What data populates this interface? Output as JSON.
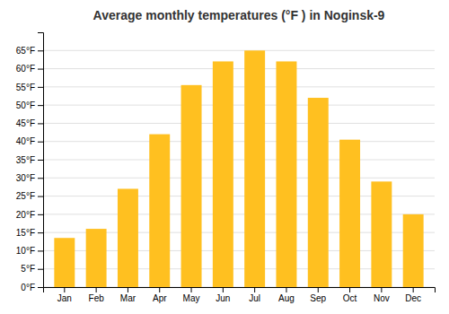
{
  "chart_data": {
    "type": "bar",
    "title": "Average monthly temperatures (°F ) in Noginsk-9",
    "categories": [
      "Jan",
      "Feb",
      "Mar",
      "Apr",
      "May",
      "Jun",
      "Jul",
      "Aug",
      "Sep",
      "Oct",
      "Nov",
      "Dec"
    ],
    "values": [
      13.5,
      16,
      27,
      42,
      55.5,
      62,
      65,
      62,
      52,
      40.5,
      29,
      20
    ],
    "color": "#FFC020",
    "ylim": [
      0,
      70
    ],
    "yticks": [
      {
        "value": 0,
        "label": "0°F"
      },
      {
        "value": 5,
        "label": "5°F"
      },
      {
        "value": 10,
        "label": "10°F"
      },
      {
        "value": 15,
        "label": "15°F"
      },
      {
        "value": 20,
        "label": "20°F"
      },
      {
        "value": 25,
        "label": "25°F"
      },
      {
        "value": 30,
        "label": "30°F"
      },
      {
        "value": 35,
        "label": "35°F"
      },
      {
        "value": 40,
        "label": "40°F"
      },
      {
        "value": 45,
        "label": "45°F"
      },
      {
        "value": 50,
        "label": "50°F"
      },
      {
        "value": 55,
        "label": "55°F"
      },
      {
        "value": 60,
        "label": "60°F"
      },
      {
        "value": 65,
        "label": "65°F"
      }
    ],
    "grid": true
  }
}
